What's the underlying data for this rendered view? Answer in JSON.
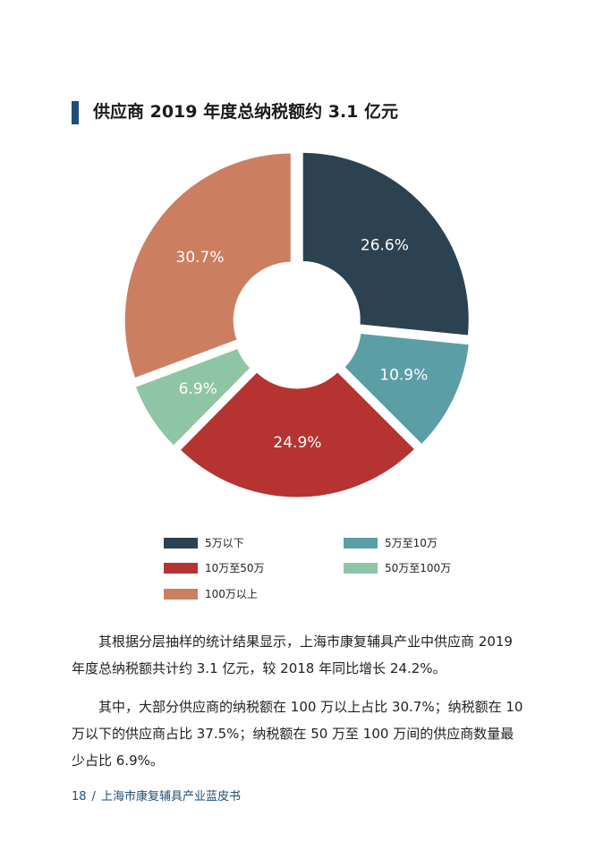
{
  "title": "供应商 2019 年度总纳税额约 3.1 亿元",
  "chart_data": {
    "type": "pie",
    "style": "donut",
    "categories": [
      "5万以下",
      "5万至10万",
      "10万至50万",
      "50万至100万",
      "100万以上"
    ],
    "values": [
      26.6,
      10.9,
      24.9,
      6.9,
      30.7
    ],
    "labels": [
      "26.6%",
      "10.9%",
      "24.9%",
      "6.9%",
      "30.7%"
    ],
    "colors": [
      "#2c4250",
      "#5b9ea6",
      "#b53431",
      "#8ec5a6",
      "#cc7e61"
    ],
    "legend_position": "bottom"
  },
  "legend": [
    {
      "label": "5万以下",
      "color": "#2c4250"
    },
    {
      "label": "5万至10万",
      "color": "#5b9ea6"
    },
    {
      "label": "10万至50万",
      "color": "#b53431"
    },
    {
      "label": "50万至100万",
      "color": "#8ec5a6"
    },
    {
      "label": "100万以上",
      "color": "#cc7e61"
    }
  ],
  "paragraphs": [
    "其根据分层抽样的统计结果显示，上海市康复辅具产业中供应商 2019 年度总纳税额共计约 3.1 亿元，较 2018 年同比增长 24.2%。",
    "其中，大部分供应商的纳税额在 100 万以上占比 30.7%；纳税额在 10 万以下的供应商占比 37.5%；纳税额在 50 万至 100 万间的供应商数量最少占比 6.9%。"
  ],
  "footer": {
    "page": "18",
    "separator": "/",
    "book": "上海市康复辅具产业蓝皮书"
  }
}
